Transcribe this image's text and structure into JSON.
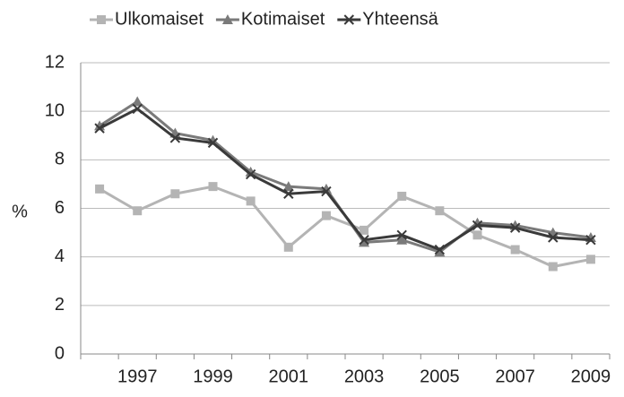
{
  "chart_data": {
    "type": "line",
    "categories": [
      null,
      "1997",
      null,
      "1999",
      null,
      "2001",
      null,
      "2003",
      null,
      "2005",
      null,
      "2007",
      null,
      "2009"
    ],
    "y_label": "%",
    "ylim": [
      0,
      12
    ],
    "yticks": [
      0,
      2,
      4,
      6,
      8,
      10,
      12
    ],
    "grid": true,
    "legend": "top",
    "series": [
      {
        "name": "Ulkomaiset",
        "color": "#b4b4b4",
        "marker": "square",
        "values": [
          6.8,
          5.9,
          6.6,
          6.9,
          6.3,
          4.4,
          5.7,
          5.1,
          6.5,
          5.9,
          4.9,
          4.3,
          3.6,
          3.9
        ]
      },
      {
        "name": "Kotimaiset",
        "color": "#7a7a7a",
        "marker": "triangle",
        "values": [
          9.4,
          10.4,
          9.1,
          8.8,
          7.5,
          6.9,
          6.8,
          4.6,
          4.7,
          4.2,
          5.4,
          5.3,
          5.0,
          4.8
        ]
      },
      {
        "name": "Yhteensä",
        "color": "#3a3a3a",
        "marker": "x",
        "values": [
          9.3,
          10.1,
          8.9,
          8.7,
          7.4,
          6.6,
          6.7,
          4.7,
          4.9,
          4.3,
          5.3,
          5.2,
          4.8,
          4.7
        ]
      }
    ]
  }
}
